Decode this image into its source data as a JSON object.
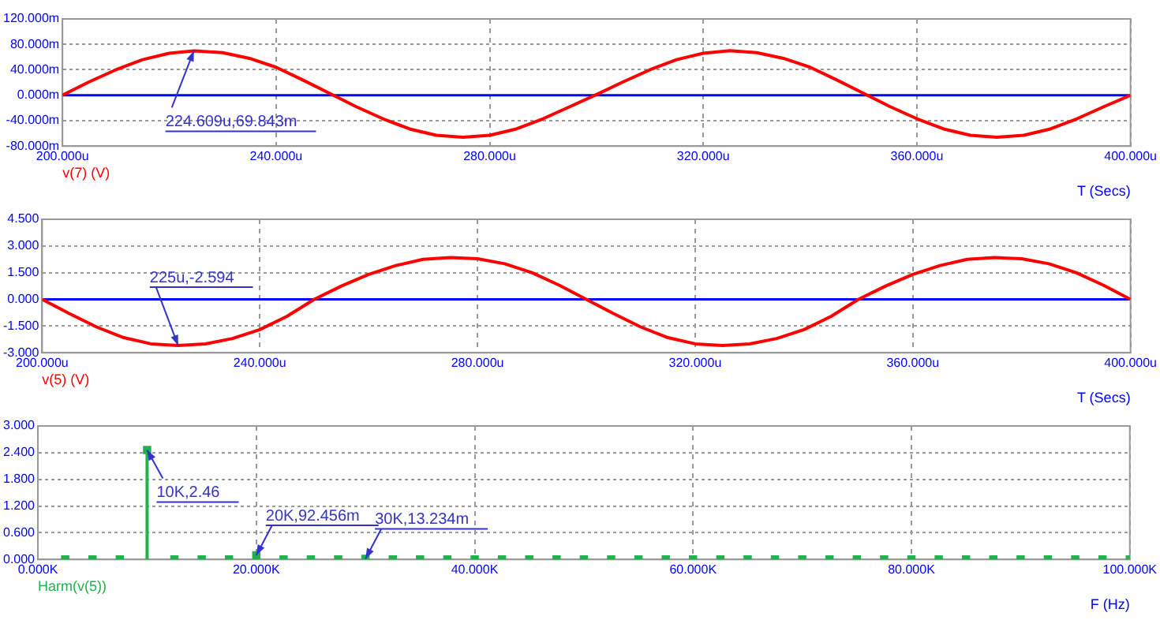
{
  "chart_data": [
    {
      "type": "line",
      "xlabel": "T (Secs)",
      "x": [
        200,
        205,
        210,
        215,
        220,
        224.609,
        230,
        235,
        240,
        245,
        250,
        255,
        260,
        265,
        270,
        275,
        280,
        285,
        290,
        295,
        300,
        305,
        310,
        315,
        320,
        325,
        330,
        335,
        340,
        345,
        350,
        355,
        360,
        365,
        370,
        375,
        380,
        385,
        390,
        395,
        400
      ],
      "series": [
        {
          "name": "v(7) (V)",
          "color": "#ff0000",
          "values": [
            0,
            21,
            40,
            56,
            66,
            69.843,
            67,
            58,
            44,
            24,
            3,
            -18,
            -37,
            -53,
            -63,
            -66,
            -63,
            -53,
            -37,
            -18,
            1,
            21,
            40,
            56,
            66,
            70,
            67,
            58,
            44,
            24,
            3,
            -18,
            -37,
            -53,
            -63,
            -66,
            -63,
            -53,
            -37,
            -18,
            0
          ]
        }
      ],
      "xlim": [
        200,
        400
      ],
      "xticks": [
        {
          "value": 200,
          "label": "200.000u"
        },
        {
          "value": 240,
          "label": "240.000u"
        },
        {
          "value": 280,
          "label": "280.000u"
        },
        {
          "value": 320,
          "label": "320.000u"
        },
        {
          "value": 360,
          "label": "360.000u"
        },
        {
          "value": 400,
          "label": "400.000u"
        }
      ],
      "ylim": [
        -80,
        120
      ],
      "yticks": [
        {
          "value": -80,
          "label": "-80.000m"
        },
        {
          "value": -40,
          "label": "-40.000m"
        },
        {
          "value": 0,
          "label": "0.000m"
        },
        {
          "value": 40,
          "label": "40.000m"
        },
        {
          "value": 80,
          "label": "80.000m"
        },
        {
          "value": 120,
          "label": "120.000m"
        }
      ],
      "ref_lines": [
        {
          "axis": "y",
          "value": 0,
          "color": "#0000ff"
        }
      ],
      "annotations": [
        {
          "text": "224.609u,69.843m",
          "x": 224.609,
          "y": 69.843
        }
      ],
      "grid": true,
      "legend": "bottom left",
      "marker": "none",
      "line_style": "solid"
    },
    {
      "type": "line",
      "xlabel": "T (Secs)",
      "x": [
        200,
        205,
        210,
        215,
        220,
        225,
        230,
        235,
        240,
        245,
        250,
        255,
        260,
        265,
        270,
        275,
        280,
        285,
        290,
        295,
        300,
        305,
        310,
        315,
        320,
        325,
        330,
        335,
        340,
        345,
        350,
        355,
        360,
        365,
        370,
        375,
        380,
        385,
        390,
        395,
        400
      ],
      "series": [
        {
          "name": "v(5) (V)",
          "color": "#ff0000",
          "values": [
            0,
            -0.8,
            -1.55,
            -2.15,
            -2.5,
            -2.594,
            -2.5,
            -2.2,
            -1.7,
            -0.95,
            0,
            0.75,
            1.4,
            1.9,
            2.25,
            2.35,
            2.28,
            2.0,
            1.5,
            0.8,
            0,
            -0.8,
            -1.55,
            -2.15,
            -2.5,
            -2.59,
            -2.5,
            -2.2,
            -1.7,
            -0.95,
            0,
            0.75,
            1.4,
            1.9,
            2.25,
            2.35,
            2.28,
            2.0,
            1.5,
            0.8,
            0
          ]
        }
      ],
      "xlim": [
        200,
        400
      ],
      "xticks": [
        {
          "value": 200,
          "label": "200.000u"
        },
        {
          "value": 240,
          "label": "240.000u"
        },
        {
          "value": 280,
          "label": "280.000u"
        },
        {
          "value": 320,
          "label": "320.000u"
        },
        {
          "value": 360,
          "label": "360.000u"
        },
        {
          "value": 400,
          "label": "400.000u"
        }
      ],
      "ylim": [
        -3,
        4.5
      ],
      "yticks": [
        {
          "value": -3,
          "label": "-3.000"
        },
        {
          "value": -1.5,
          "label": "-1.500"
        },
        {
          "value": 0,
          "label": "0.000"
        },
        {
          "value": 1.5,
          "label": "1.500"
        },
        {
          "value": 3,
          "label": "3.000"
        },
        {
          "value": 4.5,
          "label": "4.500"
        }
      ],
      "ref_lines": [
        {
          "axis": "y",
          "value": 0,
          "color": "#0000ff"
        }
      ],
      "annotations": [
        {
          "text": "225u,-2.594",
          "x": 225,
          "y": -2.594
        }
      ],
      "grid": true,
      "legend": "bottom left",
      "marker": "none",
      "line_style": "solid"
    },
    {
      "type": "lollipop",
      "xlabel": "F (Hz)",
      "x": [
        2.5,
        5,
        7.5,
        10,
        12.5,
        15,
        17.5,
        20,
        22.5,
        25,
        27.5,
        30,
        32.5,
        35,
        37.5,
        40,
        42.5,
        45,
        47.5,
        50,
        52.5,
        55,
        57.5,
        60,
        62.5,
        65,
        67.5,
        70,
        72.5,
        75,
        77.5,
        80,
        82.5,
        85,
        87.5,
        90,
        92.5,
        95,
        97.5,
        100
      ],
      "series": [
        {
          "name": "Harm(v(5))",
          "color": "#22b14c",
          "values": [
            0,
            0,
            0,
            2.46,
            0,
            0,
            0,
            0.092456,
            0,
            0,
            0,
            0.013234,
            0,
            0,
            0,
            0,
            0,
            0,
            0,
            0,
            0,
            0,
            0,
            0,
            0,
            0,
            0,
            0,
            0,
            0,
            0,
            0,
            0,
            0,
            0,
            0,
            0,
            0,
            0,
            0
          ]
        }
      ],
      "xlim": [
        0,
        100
      ],
      "xticks": [
        {
          "value": 0,
          "label": "0.000K"
        },
        {
          "value": 20,
          "label": "20.000K"
        },
        {
          "value": 40,
          "label": "40.000K"
        },
        {
          "value": 60,
          "label": "60.000K"
        },
        {
          "value": 80,
          "label": "80.000K"
        },
        {
          "value": 100,
          "label": "100.000K"
        }
      ],
      "ylim": [
        0,
        3
      ],
      "yticks": [
        {
          "value": 0,
          "label": "0.000"
        },
        {
          "value": 0.6,
          "label": "0.600"
        },
        {
          "value": 1.2,
          "label": "1.200"
        },
        {
          "value": 1.8,
          "label": "1.800"
        },
        {
          "value": 2.4,
          "label": "2.400"
        },
        {
          "value": 3,
          "label": "3.000"
        }
      ],
      "annotations": [
        {
          "text": "10K,2.46",
          "x": 10,
          "y": 2.46
        },
        {
          "text": "20K,92.456m",
          "x": 20,
          "y": 0.092456
        },
        {
          "text": "30K,13.234m",
          "x": 30,
          "y": 0.013234
        }
      ],
      "grid": true,
      "legend": "bottom left",
      "marker": "square",
      "line_style": "solid"
    }
  ]
}
